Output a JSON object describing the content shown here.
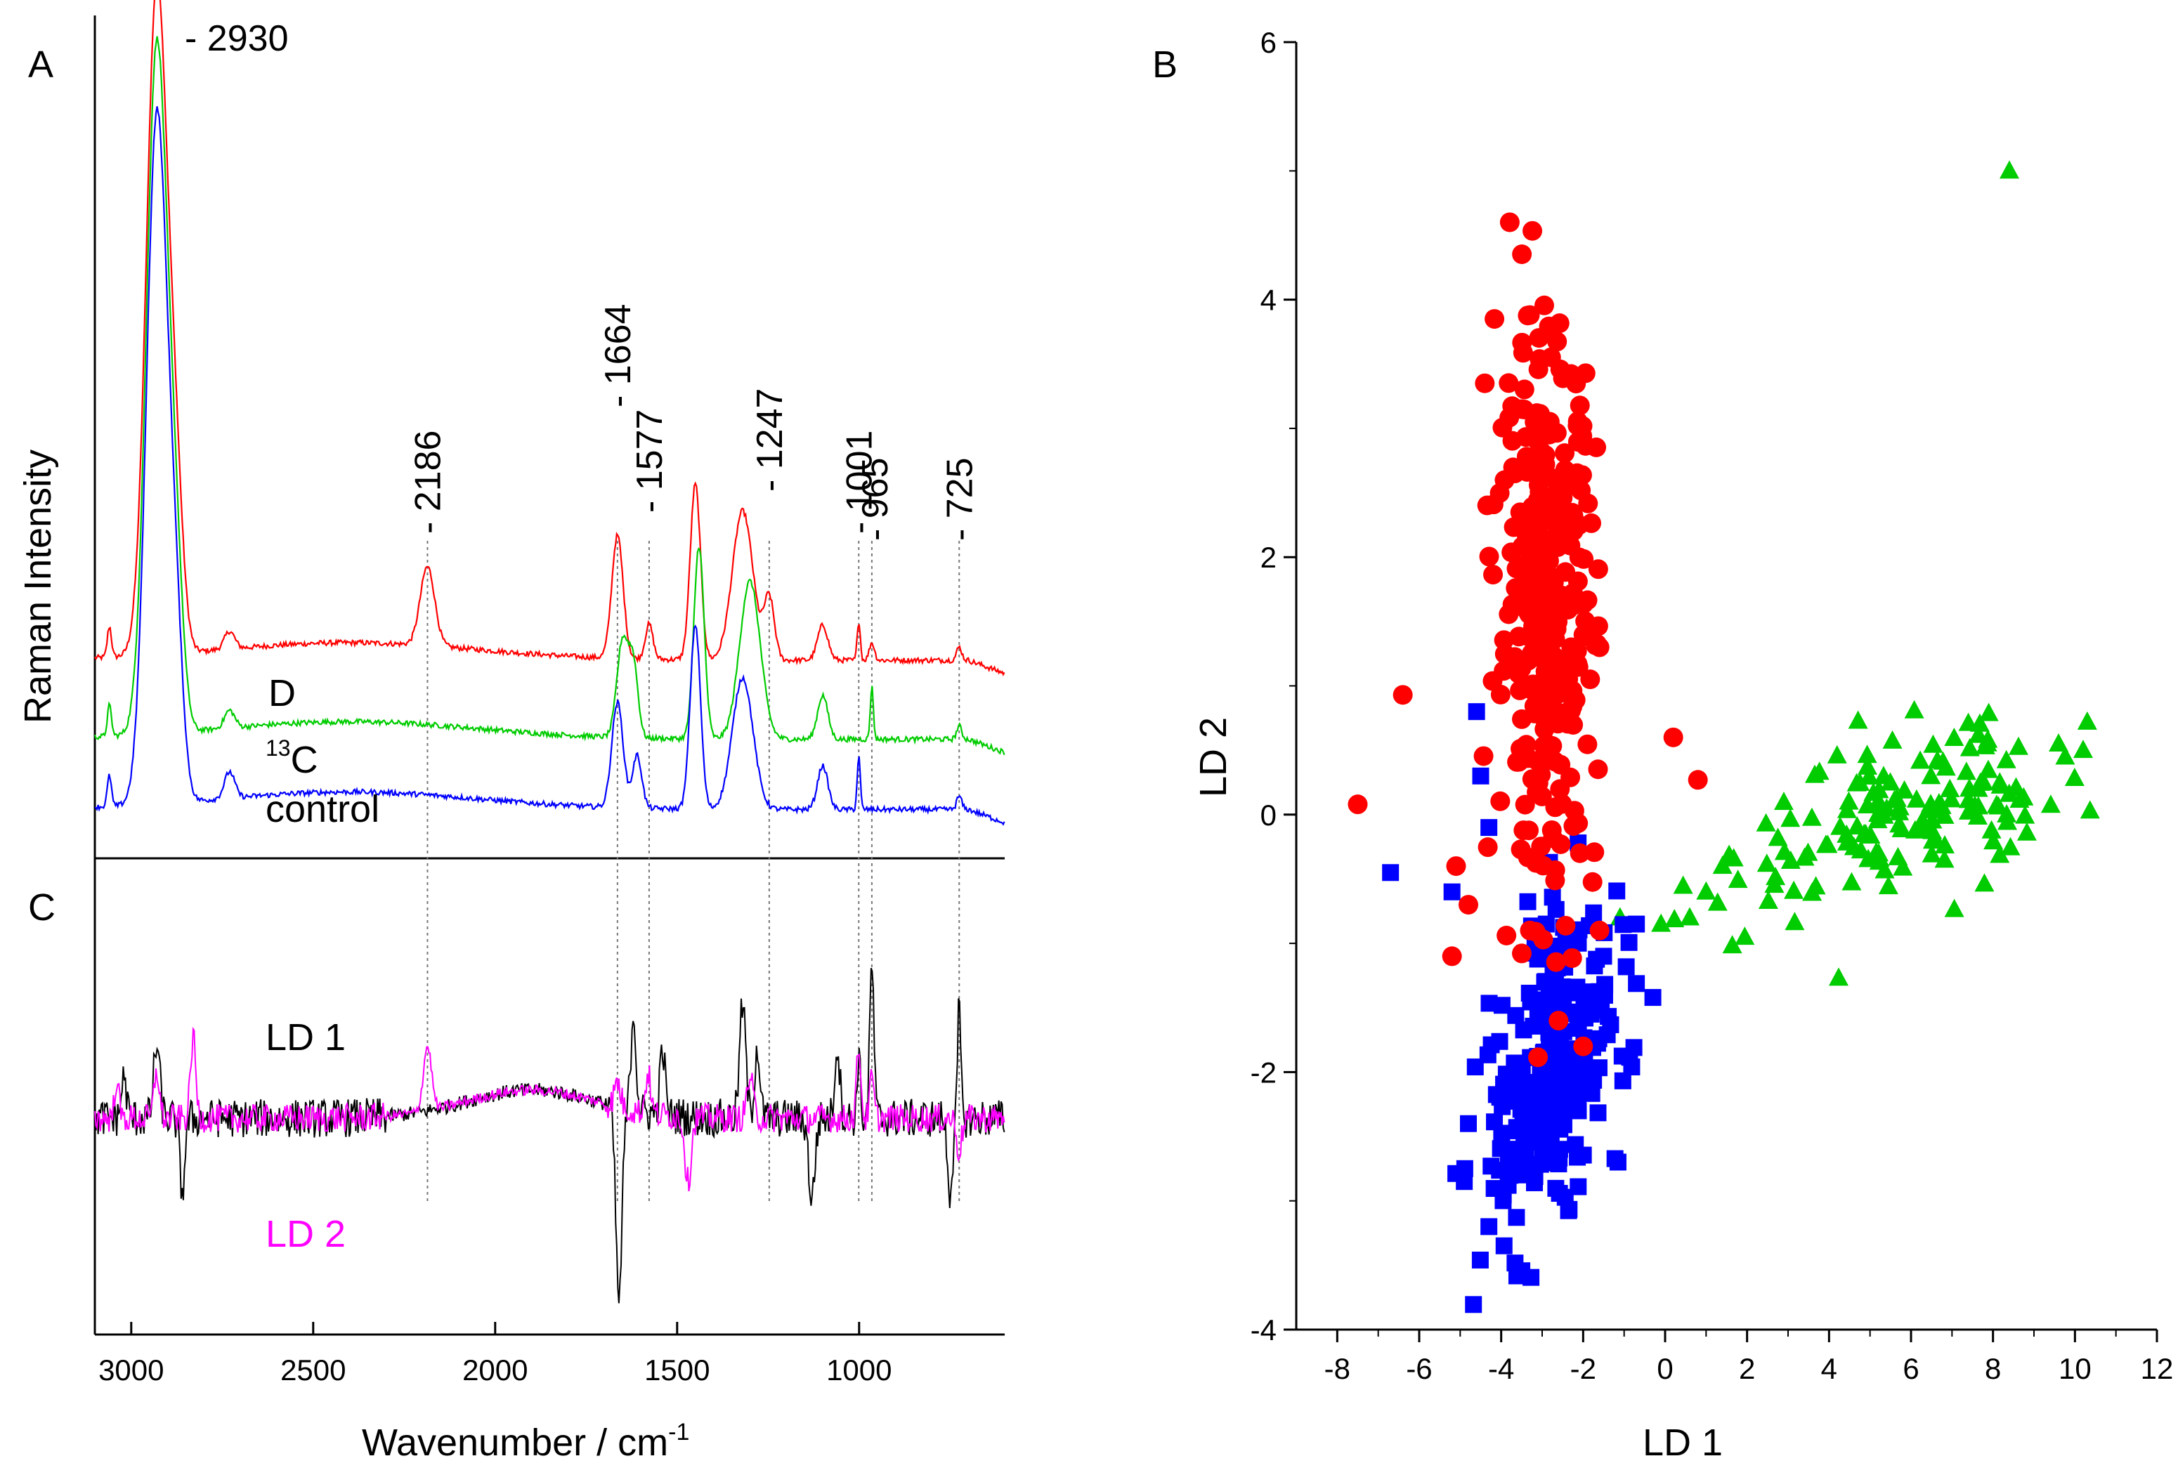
{
  "chart_data": [
    {
      "panel": "A",
      "type": "line",
      "title": "",
      "xlabel": "Wavenumber / cm-1",
      "ylabel": "Raman Intensity",
      "xlim": [
        3100,
        600
      ],
      "xticks": [
        3000,
        2500,
        2000,
        1500,
        1000
      ],
      "series": [
        {
          "name": "D",
          "color": "#ff0000",
          "offset": 0.22,
          "peaks": [
            [
              2930,
              0.76,
              40
            ],
            [
              2880,
              0.18,
              30
            ],
            [
              3060,
              0.035,
              8
            ],
            [
              2730,
              0.02,
              20
            ],
            [
              2186,
              0.09,
              28
            ],
            [
              1664,
              0.14,
              22
            ],
            [
              1577,
              0.04,
              15
            ],
            [
              1450,
              0.2,
              20
            ],
            [
              1320,
              0.17,
              40
            ],
            [
              1247,
              0.07,
              20
            ],
            [
              1100,
              0.04,
              20
            ],
            [
              1001,
              0.045,
              6
            ],
            [
              965,
              0.02,
              10
            ],
            [
              725,
              0.015,
              10
            ]
          ]
        },
        {
          "name": "13C",
          "color": "#00cc00",
          "offset": 0.13,
          "peaks": [
            [
              2930,
              0.78,
              40
            ],
            [
              2880,
              0.18,
              30
            ],
            [
              3060,
              0.035,
              8
            ],
            [
              2730,
              0.02,
              20
            ],
            [
              1650,
              0.11,
              22
            ],
            [
              1620,
              0.08,
              18
            ],
            [
              1440,
              0.22,
              20
            ],
            [
              1300,
              0.18,
              40
            ],
            [
              1100,
              0.05,
              20
            ],
            [
              965,
              0.06,
              6
            ],
            [
              725,
              0.015,
              10
            ]
          ]
        },
        {
          "name": "control",
          "color": "#0000ff",
          "offset": 0.05,
          "peaks": [
            [
              2930,
              0.78,
              40
            ],
            [
              2880,
              0.18,
              30
            ],
            [
              3060,
              0.035,
              8
            ],
            [
              2730,
              0.03,
              20
            ],
            [
              1664,
              0.12,
              22
            ],
            [
              1610,
              0.06,
              18
            ],
            [
              1450,
              0.21,
              20
            ],
            [
              1320,
              0.15,
              40
            ],
            [
              1100,
              0.05,
              20
            ],
            [
              1001,
              0.06,
              6
            ],
            [
              725,
              0.015,
              10
            ]
          ]
        }
      ],
      "curve_labels": [
        "D",
        "13C",
        "control"
      ],
      "peak_labels": [
        "- 2930",
        "- 2186",
        "- 1664",
        "- 1577",
        "- 1247",
        "- 1001",
        "- 965",
        "- 725"
      ],
      "peak_positions": [
        2930,
        2186,
        1664,
        1577,
        1247,
        1001,
        965,
        725
      ]
    },
    {
      "panel": "C",
      "type": "line",
      "xlim": [
        3100,
        600
      ],
      "series": [
        {
          "name": "LD 1",
          "color": "#000000",
          "noise": 0.3,
          "features": [
            [
              2930,
              0.9,
              12
            ],
            [
              2860,
              -0.9,
              10
            ],
            [
              3020,
              0.5,
              10
            ],
            [
              1660,
              -2.4,
              12
            ],
            [
              1620,
              1.2,
              10
            ],
            [
              1540,
              0.8,
              10
            ],
            [
              1320,
              1.4,
              12
            ],
            [
              1280,
              0.9,
              10
            ],
            [
              1130,
              -1.0,
              12
            ],
            [
              1060,
              0.9,
              10
            ],
            [
              965,
              1.9,
              8
            ],
            [
              1001,
              0.8,
              6
            ],
            [
              750,
              -0.9,
              10
            ],
            [
              725,
              1.4,
              6
            ]
          ]
        },
        {
          "name": "LD 2",
          "color": "#ff00ff",
          "noise": 0.22,
          "features": [
            [
              2830,
              1.0,
              10
            ],
            [
              2930,
              0.6,
              10
            ],
            [
              3040,
              0.5,
              8
            ],
            [
              2186,
              0.8,
              16
            ],
            [
              1664,
              0.3,
              12
            ],
            [
              1580,
              0.5,
              10
            ],
            [
              1470,
              -0.8,
              12
            ],
            [
              1300,
              0.5,
              12
            ],
            [
              1001,
              0.9,
              8
            ],
            [
              965,
              0.5,
              8
            ],
            [
              725,
              -0.4,
              10
            ]
          ]
        }
      ],
      "curve_labels": [
        "LD 1",
        "LD 2"
      ]
    },
    {
      "panel": "B",
      "type": "scatter",
      "xlabel": "LD 1",
      "ylabel": "LD 2",
      "xlim": [
        -9,
        12
      ],
      "ylim": [
        -4,
        6
      ],
      "xticks": [
        -8,
        -6,
        -4,
        -2,
        0,
        2,
        4,
        6,
        8,
        10,
        12
      ],
      "yticks": [
        -4,
        -2,
        0,
        2,
        4,
        6
      ],
      "tick_labels_x": [
        "-8",
        "-6",
        "-4",
        "-2",
        "0",
        "2",
        "4",
        "6",
        "8",
        "10",
        "12"
      ],
      "tick_labels_y": [
        "-4",
        "-2",
        "0",
        "2",
        "4",
        "6"
      ],
      "series": [
        {
          "name": "control",
          "marker": "square",
          "color": "#0000ff",
          "clusters": [
            {
              "cx": -2.8,
              "cy": -2.0,
              "sx": 0.75,
              "sy": 0.6,
              "n": 260
            }
          ],
          "points": [
            [
              -6.7,
              -0.45
            ],
            [
              -5.2,
              -0.6
            ],
            [
              -4.6,
              0.8
            ],
            [
              -4.5,
              0.3
            ],
            [
              -4.3,
              -0.1
            ],
            [
              -4.8,
              -2.4
            ],
            [
              -4.9,
              -2.85
            ],
            [
              -4.3,
              -3.2
            ],
            [
              -2.9,
              -0.85
            ],
            [
              -1.5,
              -1.1
            ],
            [
              -0.7,
              -0.85
            ]
          ]
        },
        {
          "name": "D",
          "marker": "circle",
          "color": "#ff0000",
          "clusters": [
            {
              "cx": -2.9,
              "cy": 1.6,
              "sx": 0.6,
              "sy": 1.05,
              "n": 330
            }
          ],
          "points": [
            [
              -7.5,
              0.08
            ],
            [
              -6.4,
              0.93
            ],
            [
              -5.2,
              -1.1
            ],
            [
              -4.4,
              3.35
            ],
            [
              -3.3,
              3.88
            ],
            [
              -1.6,
              1.3
            ],
            [
              0.2,
              0.6
            ],
            [
              0.8,
              0.27
            ],
            [
              -5.1,
              -0.4
            ],
            [
              -4.8,
              -0.7
            ],
            [
              -2.6,
              -1.6
            ],
            [
              -2.0,
              -1.8
            ],
            [
              -1.6,
              -0.9
            ],
            [
              -3.3,
              -0.9
            ]
          ]
        },
        {
          "name": "13C",
          "marker": "triangle",
          "color": "#00cc00",
          "clusters": [
            {
              "cx": 5.8,
              "cy": 0.0,
              "sx": 1.9,
              "sy": 0.3,
              "n": 150,
              "trend": 0.09
            }
          ],
          "points": [
            [
              8.4,
              5.0
            ],
            [
              -1.5,
              -1.7
            ],
            [
              -1.1,
              -0.8
            ],
            [
              -0.1,
              -0.85
            ],
            [
              0.6,
              -0.8
            ],
            [
              1.0,
              -0.6
            ],
            [
              1.4,
              -0.4
            ],
            [
              10.3,
              0.72
            ],
            [
              10.2,
              0.5
            ],
            [
              9.6,
              0.55
            ]
          ]
        }
      ]
    }
  ],
  "labels": {
    "panel_a": "A",
    "panel_b": "B",
    "panel_c": "C",
    "curve_d": "D",
    "curve_13c_sup": "13",
    "curve_13c_main": "C",
    "curve_control": "control",
    "ld1": "LD 1",
    "ld2": "LD 2",
    "xlabel_main": "Wavenumber / cm",
    "xlabel_sup": "-1",
    "ylabel_a": "Raman Intensity",
    "xlabel_b": "LD 1",
    "ylabel_b": "LD 2"
  }
}
